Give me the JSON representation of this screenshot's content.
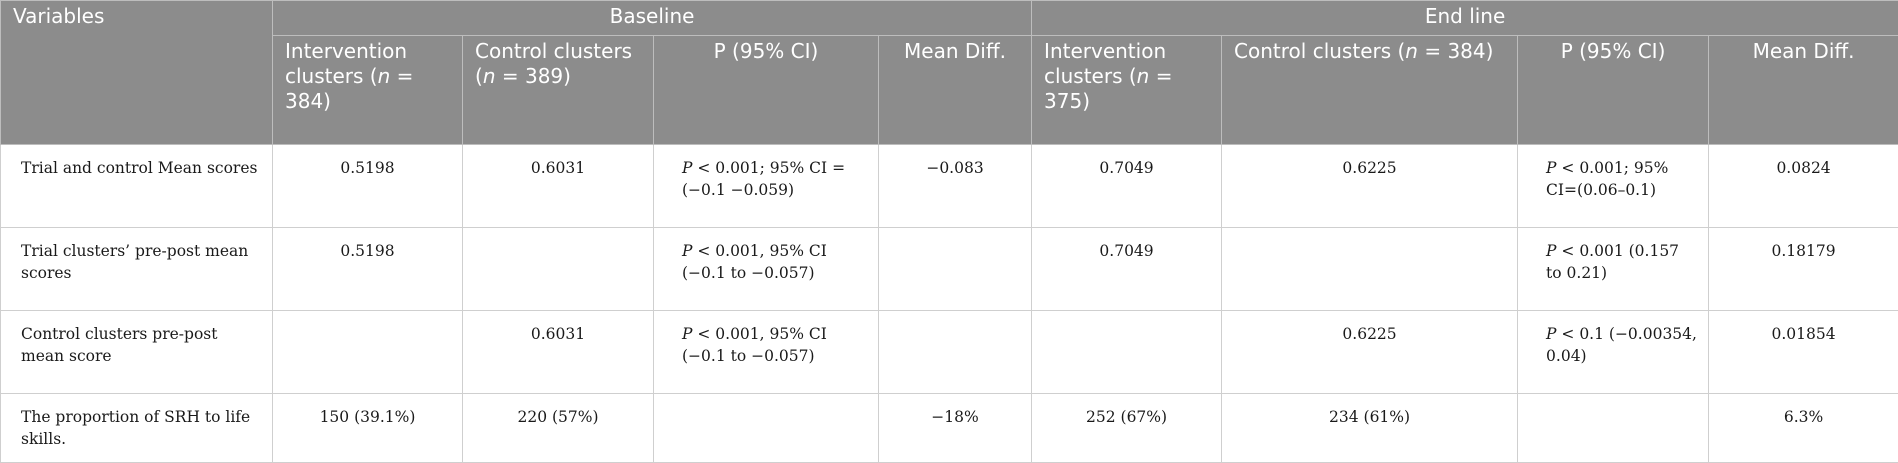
{
  "table": {
    "header_variables": "Variables",
    "group_baseline": "Baseline",
    "group_endline": "End line",
    "sub_headers": {
      "b_int_a": "Intervention clusters (",
      "b_int_n": "n",
      "b_int_b": " = 384)",
      "b_ctl_a": "Control clusters (",
      "b_ctl_n": "n",
      "b_ctl_b": " = 389)",
      "b_p": "P (95% CI)",
      "b_md": "Mean Diff.",
      "e_int_a": "Intervention clusters (",
      "e_int_n": "n",
      "e_int_b": " = 375)",
      "e_ctl_a": "Control clusters (",
      "e_ctl_n": "n",
      "e_ctl_b": " = 384)",
      "e_p": "P (95% CI)",
      "e_md": "Mean Diff."
    },
    "rows": [
      {
        "variable": "Trial and control Mean scores",
        "b_int": "0.5198",
        "b_ctl": "0.6031",
        "b_p_letter": "P",
        "b_p_rest": " < 0.001; 95% CI = (−0.1 −0.059)",
        "b_md": "−0.083",
        "e_int": "0.7049",
        "e_ctl": "0.6225",
        "e_p_letter": "P",
        "e_p_rest": " < 0.001; 95% CI=(0.06–0.1)",
        "e_md": "0.0824"
      },
      {
        "variable": "Trial clusters’ pre-post mean scores",
        "b_int": "0.5198",
        "b_ctl": "",
        "b_p_letter": "P",
        "b_p_rest": " < 0.001, 95% CI (−0.1 to −0.057)",
        "b_md": "",
        "e_int": "0.7049",
        "e_ctl": "",
        "e_p_letter": "P",
        "e_p_rest": " < 0.001 (0.157 to 0.21)",
        "e_md": "0.18179"
      },
      {
        "variable": "Control clusters pre-post mean score",
        "b_int": "",
        "b_ctl": "0.6031",
        "b_p_letter": "P",
        "b_p_rest": " < 0.001, 95% CI (−0.1 to −0.057)",
        "b_md": "",
        "e_int": "",
        "e_ctl": "0.6225",
        "e_p_letter": "P",
        "e_p_rest": " < 0.1 (−0.00354, 0.04)",
        "e_md": "0.01854"
      },
      {
        "variable": "The proportion of SRH to life skills.",
        "b_int": "150 (39.1%)",
        "b_ctl": "220 (57%)",
        "b_p_letter": "",
        "b_p_rest": "",
        "b_md": "−18%",
        "e_int": "252 (67%)",
        "e_ctl": "234 (61%)",
        "e_p_letter": "",
        "e_p_rest": "",
        "e_md": "6.3%"
      }
    ]
  }
}
